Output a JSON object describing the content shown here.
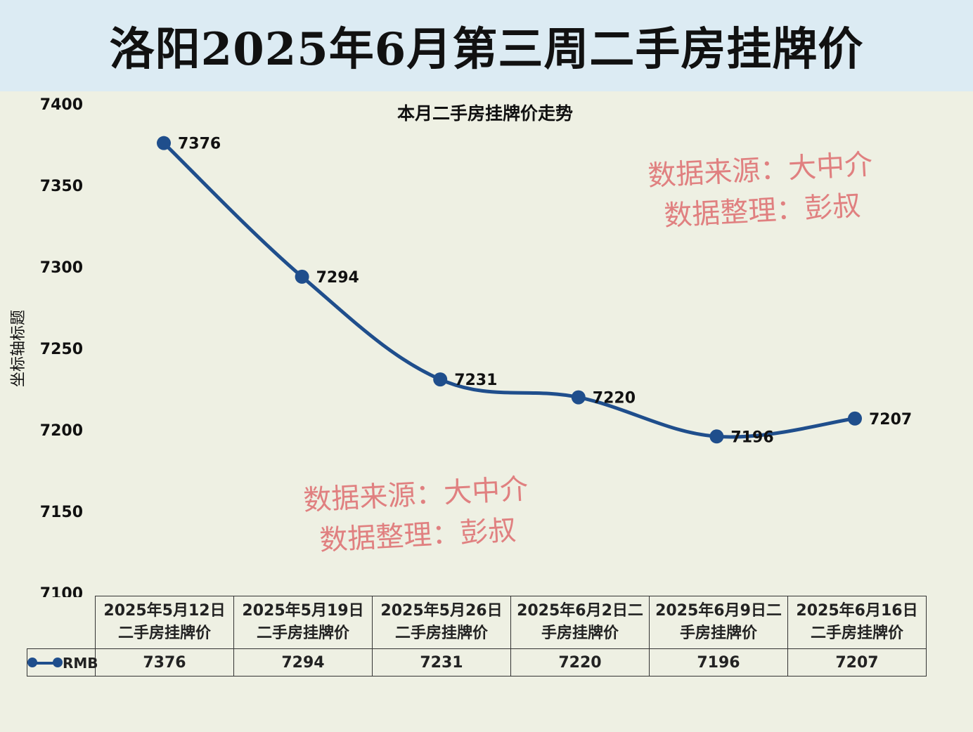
{
  "header": {
    "title": "洛阳2025年6月第三周二手房挂牌价"
  },
  "watermarks": [
    {
      "line1": "数据来源：大中介",
      "line2": "数据整理：彭叔"
    },
    {
      "line1": "数据来源：大中介",
      "line2": "数据整理：彭叔"
    }
  ],
  "colors": {
    "line": "#1f4e8c",
    "header_bg": "#dcebf3",
    "plot_bg": "#eef0e3",
    "watermark": "#e08080"
  },
  "chart_data": {
    "type": "line",
    "title": "本月二手房挂牌价走势",
    "xlabel": "",
    "ylabel": "坐标轴标题",
    "ylim": [
      7100,
      7400
    ],
    "yticks": [
      7100,
      7150,
      7200,
      7250,
      7300,
      7350,
      7400
    ],
    "categories": [
      [
        "2025年5月12日",
        "二手房挂牌价"
      ],
      [
        "2025年5月19日",
        "二手房挂牌价"
      ],
      [
        "2025年5月26日",
        "二手房挂牌价"
      ],
      [
        "2025年6月2日二",
        "手房挂牌价"
      ],
      [
        "2025年6月9日二",
        "手房挂牌价"
      ],
      [
        "2025年6月16日",
        "二手房挂牌价"
      ]
    ],
    "series": [
      {
        "name": "RMB",
        "values": [
          7376,
          7294,
          7231,
          7220,
          7196,
          7207
        ]
      }
    ],
    "grid": false,
    "legend": "table-left"
  }
}
